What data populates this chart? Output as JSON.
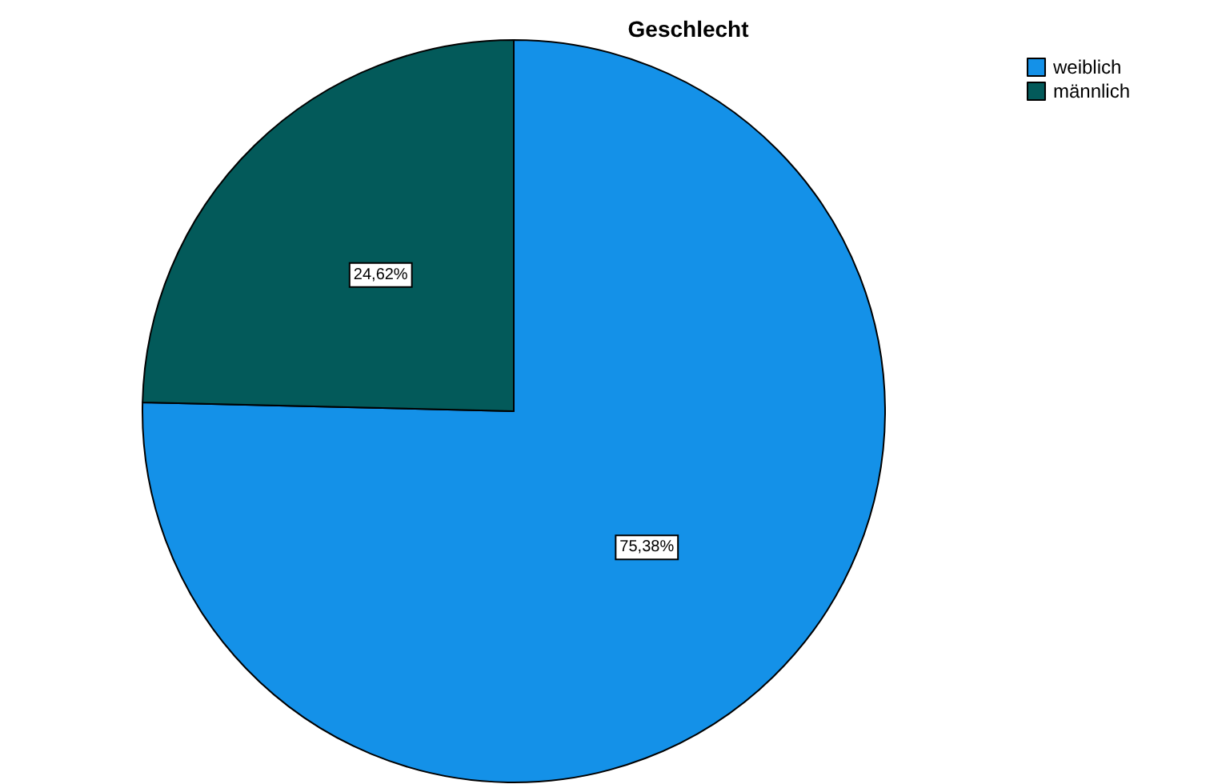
{
  "chart_data": {
    "type": "pie",
    "title": "Geschlecht",
    "categories": [
      "weiblich",
      "männlich"
    ],
    "values": [
      75.38,
      24.62
    ],
    "colors": [
      "#1491e8",
      "#035a5a"
    ],
    "value_labels": [
      "75,38%",
      "24,62%"
    ],
    "legend": "top right"
  }
}
